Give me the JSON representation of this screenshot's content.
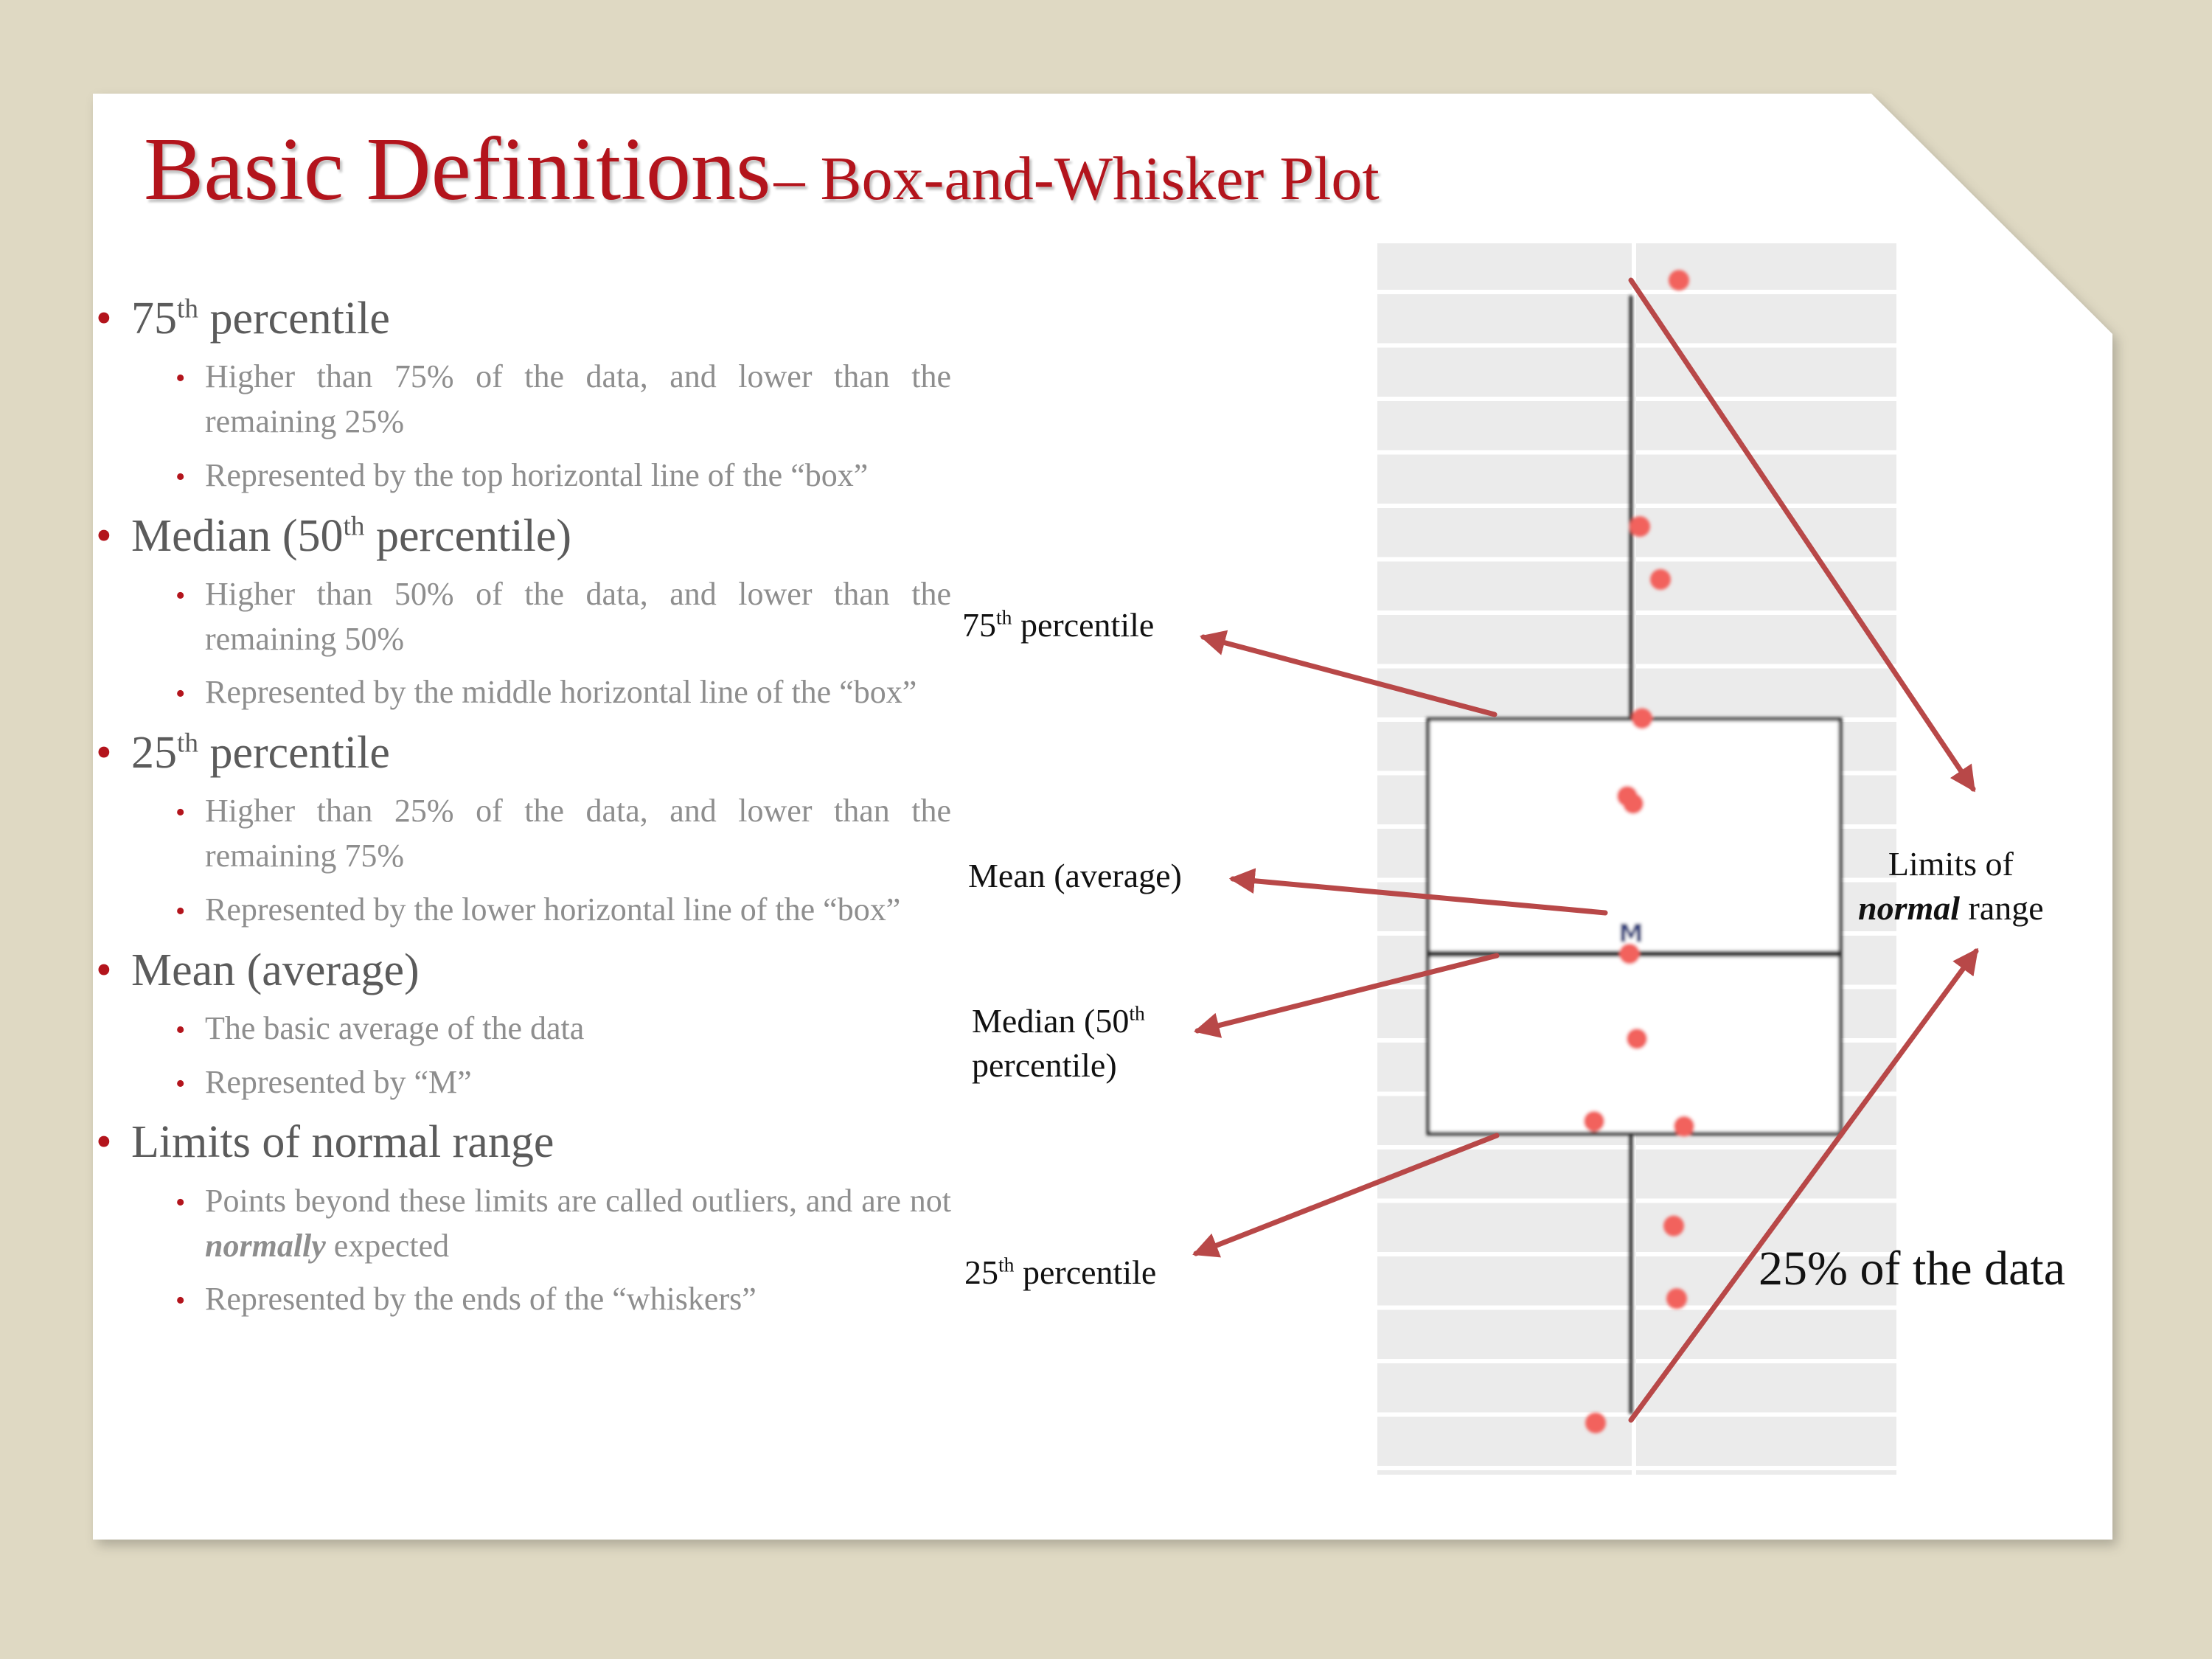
{
  "title": {
    "main": "Basic Definitions",
    "sub": "– Box-and-Whisker Plot"
  },
  "bullets": [
    {
      "pre": "75",
      "sup": "th",
      "post": " percentile",
      "subs": [
        {
          "text": "Higher than 75% of the data, and lower than the remaining 25%"
        },
        {
          "text": "Represented by the top horizontal line of the “box”"
        }
      ]
    },
    {
      "pre": "Median (50",
      "sup": "th",
      "post": " percentile)",
      "subs": [
        {
          "text": "Higher than 50% of the data, and lower than the remaining 50%"
        },
        {
          "text": "Represented by the middle horizontal line of the “box”"
        }
      ]
    },
    {
      "pre": "25",
      "sup": "th",
      "post": " percentile",
      "subs": [
        {
          "text": "Higher than 25% of the data, and lower than the remaining 75%"
        },
        {
          "text": "Represented by the lower horizontal line of the “box”"
        }
      ]
    },
    {
      "pre": "Mean (average)",
      "sup": "",
      "post": "",
      "subs": [
        {
          "text": "The basic average of the data"
        },
        {
          "text": "Represented by “M”"
        }
      ]
    },
    {
      "pre": "Limits of normal range",
      "sup": "",
      "post": "",
      "subs": [
        {
          "pre": "Points beyond these limits are called outliers, and are not ",
          "em": "normally",
          "post": " expected"
        },
        {
          "text": "Represented by the ends of the “whiskers”"
        }
      ]
    }
  ],
  "callouts": {
    "p75": {
      "pre": "75",
      "sup": "th",
      "post": " percentile"
    },
    "mean": "Mean (average)",
    "median": {
      "line1_pre": "Median (50",
      "line1_sup": "th",
      "line2": "percentile)"
    },
    "p25": {
      "pre": "25",
      "sup": "th",
      "post": " percentile"
    },
    "limits": {
      "line1": "Limits of",
      "em": "normal",
      "rest": " range"
    },
    "quartile_note": "25% of the data"
  },
  "chart_data": {
    "type": "box",
    "mean_marker": "M",
    "points": [
      {
        "value_frac": 0.97
      },
      {
        "value_frac": 0.77
      },
      {
        "value_frac": 0.727
      },
      {
        "value_frac": 0.614
      },
      {
        "value_frac": 0.551
      },
      {
        "value_frac": 0.545
      },
      {
        "value_frac": 0.423
      },
      {
        "value_frac": 0.354
      },
      {
        "value_frac": 0.287
      },
      {
        "value_frac": 0.283
      },
      {
        "value_frac": 0.202
      },
      {
        "value_frac": 0.143
      },
      {
        "value_frac": 0.042
      }
    ],
    "whisker_top": 0.9575,
    "q3": 0.6135,
    "mean": 0.4405,
    "median": 0.423,
    "q1": 0.277,
    "whisker_bottom": 0.0493,
    "grid": true
  },
  "colors": {
    "title": "#b3141c",
    "bullet": "#b3141c",
    "arrow": "#b84848",
    "point": "#f2625d",
    "plot_background": "#ebebeb",
    "page_background": "#dfd9c3"
  }
}
